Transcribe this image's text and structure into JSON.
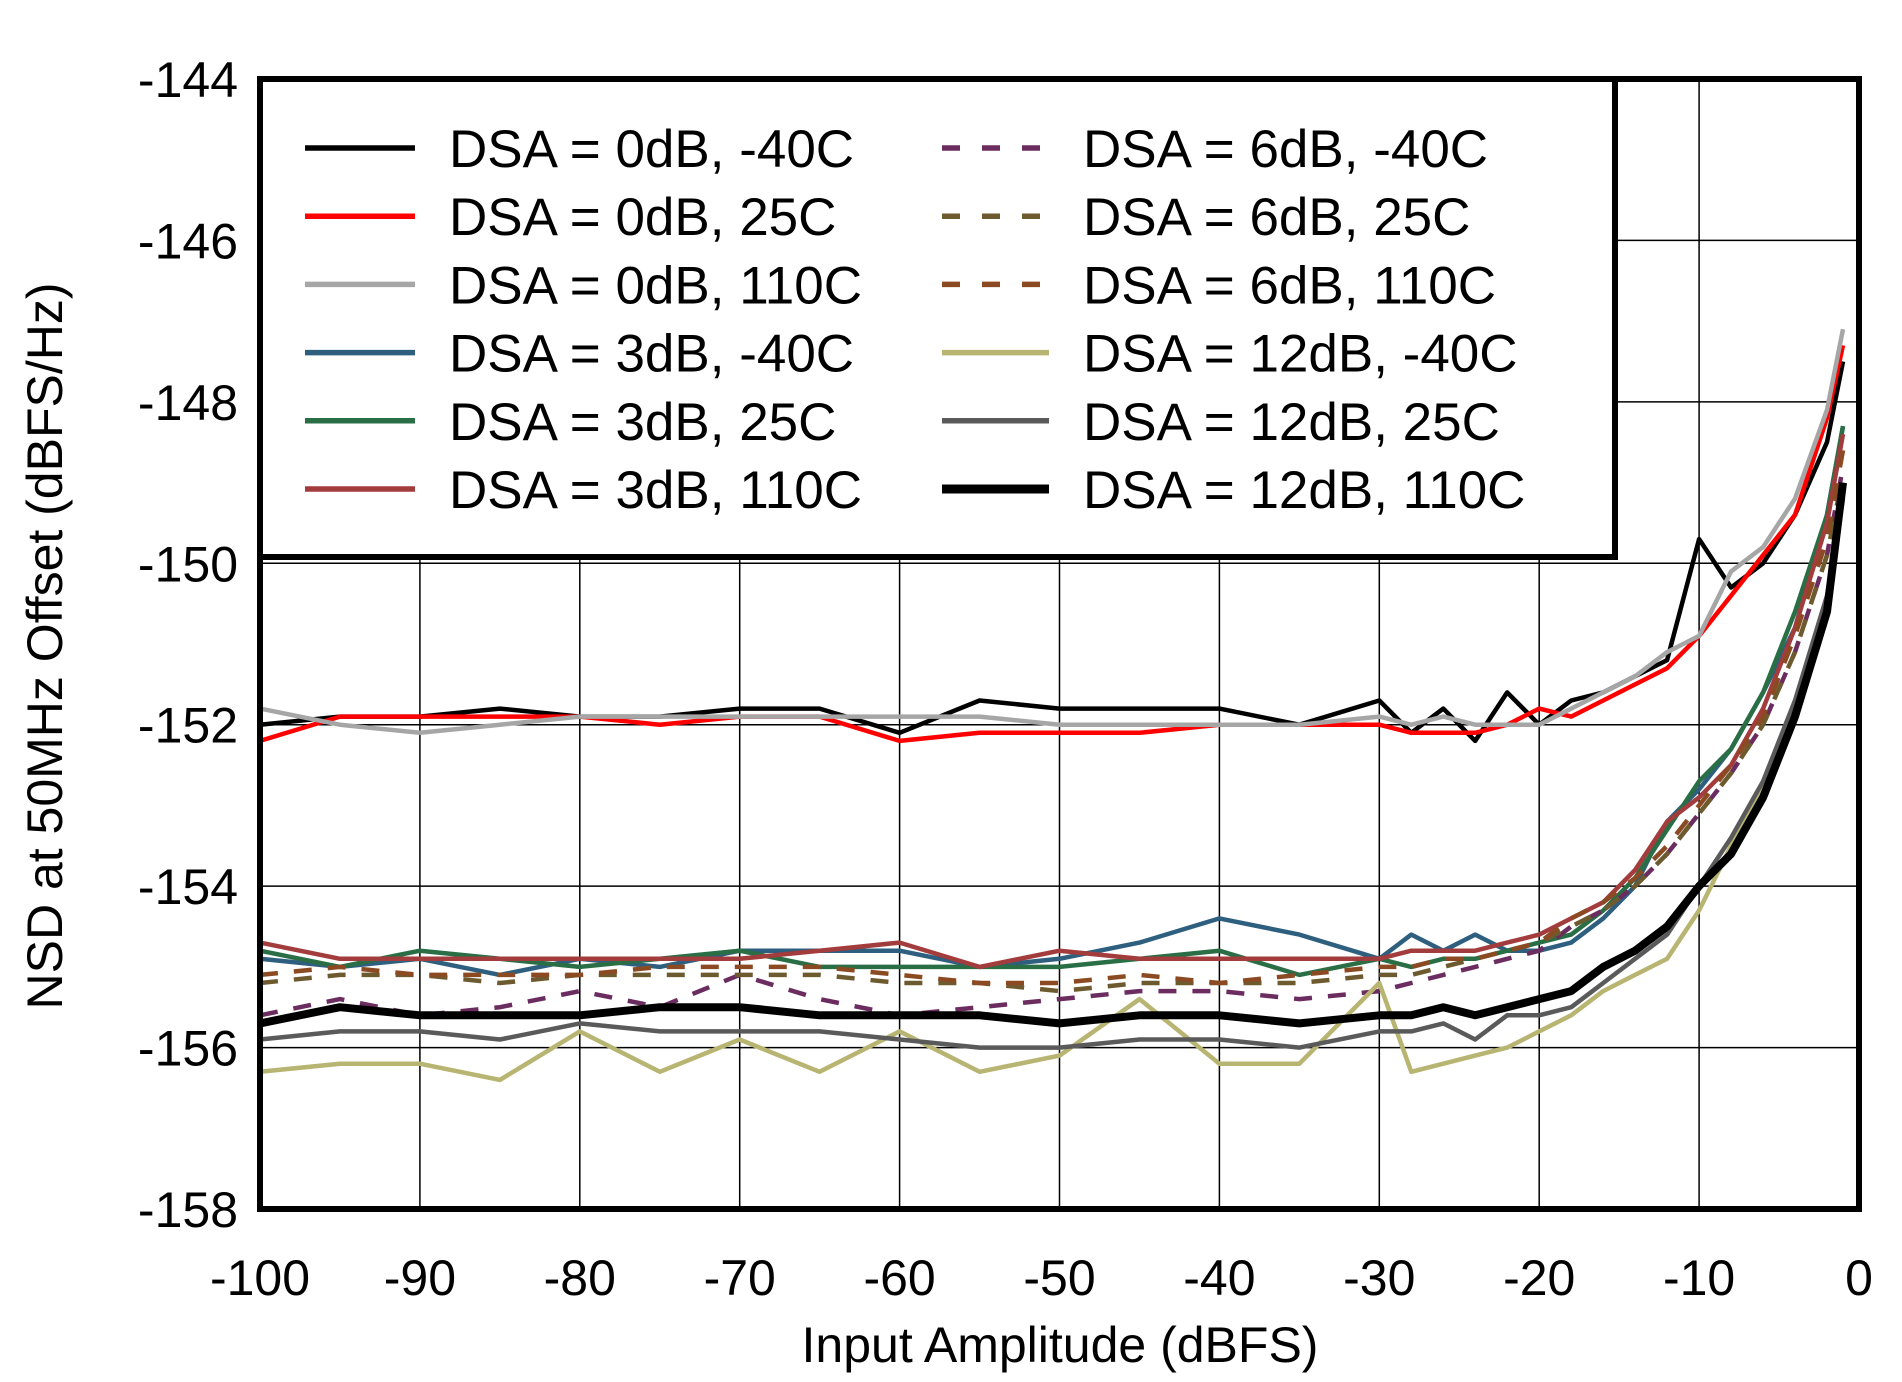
{
  "chart_data": {
    "type": "line",
    "xlabel": "Input Amplitude (dBFS)",
    "ylabel": "NSD at 50MHz Offset (dBFS/Hz)",
    "xlim": [
      -100,
      0
    ],
    "ylim": [
      -158,
      -144
    ],
    "xticks": [
      -100,
      -90,
      -80,
      -70,
      -60,
      -50,
      -40,
      -30,
      -20,
      -10,
      0
    ],
    "yticks": [
      -144,
      -146,
      -148,
      -150,
      -152,
      -154,
      -156,
      -158
    ],
    "grid": true,
    "legend_position": "top-left",
    "x": [
      -100,
      -95,
      -90,
      -85,
      -80,
      -75,
      -70,
      -65,
      -60,
      -55,
      -50,
      -45,
      -40,
      -35,
      -30,
      -28,
      -26,
      -24,
      -22,
      -20,
      -18,
      -16,
      -14,
      -12,
      -10,
      -8,
      -6,
      -4,
      -2,
      -1
    ],
    "series": [
      {
        "name": "DSA = 0dB, -40C",
        "color": "#000000",
        "dash": false,
        "width": "thin",
        "values": [
          -152.0,
          -151.9,
          -151.9,
          -151.8,
          -151.9,
          -151.9,
          -151.8,
          -151.8,
          -152.1,
          -151.7,
          -151.8,
          -151.8,
          -151.8,
          -152.0,
          -151.7,
          -152.1,
          -151.8,
          -152.2,
          -151.6,
          -152.0,
          -151.7,
          -151.6,
          -151.4,
          -151.2,
          -149.7,
          -150.3,
          -150.0,
          -149.4,
          -148.5,
          -147.5
        ]
      },
      {
        "name": "DSA = 0dB, 25C",
        "color": "#ff0000",
        "dash": false,
        "width": "thin",
        "values": [
          -152.2,
          -151.9,
          -151.9,
          -151.9,
          -151.9,
          -152.0,
          -151.9,
          -151.9,
          -152.2,
          -152.1,
          -152.1,
          -152.1,
          -152.0,
          -152.0,
          -152.0,
          -152.1,
          -152.1,
          -152.1,
          -152.0,
          -151.8,
          -151.9,
          -151.7,
          -151.5,
          -151.3,
          -150.9,
          -150.4,
          -149.9,
          -149.4,
          -148.2,
          -147.3
        ]
      },
      {
        "name": "DSA = 0dB, 110C",
        "color": "#a6a6a6",
        "dash": false,
        "width": "thin",
        "values": [
          -151.8,
          -152.0,
          -152.1,
          -152.0,
          -151.9,
          -151.9,
          -151.9,
          -151.9,
          -151.9,
          -151.9,
          -152.0,
          -152.0,
          -152.0,
          -152.0,
          -151.9,
          -152.0,
          -151.9,
          -152.0,
          -152.0,
          -152.0,
          -151.8,
          -151.6,
          -151.4,
          -151.1,
          -150.9,
          -150.1,
          -149.8,
          -149.2,
          -148.1,
          -147.1
        ]
      },
      {
        "name": "DSA = 3dB, -40C",
        "color": "#2e5f7f",
        "dash": false,
        "width": "thin",
        "values": [
          -154.9,
          -155.0,
          -154.9,
          -155.1,
          -154.9,
          -155.0,
          -154.8,
          -154.8,
          -154.8,
          -155.0,
          -154.9,
          -154.7,
          -154.4,
          -154.6,
          -154.9,
          -154.6,
          -154.8,
          -154.6,
          -154.8,
          -154.8,
          -154.7,
          -154.4,
          -154.0,
          -153.2,
          -152.8,
          -152.3,
          -151.6,
          -150.8,
          -149.4,
          -148.3
        ]
      },
      {
        "name": "DSA = 3dB, 25C",
        "color": "#2a6e46",
        "dash": false,
        "width": "thin",
        "values": [
          -154.8,
          -155.0,
          -154.8,
          -154.9,
          -155.0,
          -154.9,
          -154.8,
          -155.0,
          -155.0,
          -155.0,
          -155.0,
          -154.9,
          -154.8,
          -155.1,
          -154.9,
          -155.0,
          -154.9,
          -154.9,
          -154.8,
          -154.7,
          -154.6,
          -154.3,
          -153.9,
          -153.3,
          -152.7,
          -152.3,
          -151.6,
          -150.6,
          -149.4,
          -148.3
        ]
      },
      {
        "name": "DSA = 3dB, 110C",
        "color": "#a33c3c",
        "dash": false,
        "width": "thin",
        "values": [
          -154.7,
          -154.9,
          -154.9,
          -154.9,
          -154.9,
          -154.9,
          -154.9,
          -154.8,
          -154.7,
          -155.0,
          -154.8,
          -154.9,
          -154.9,
          -154.9,
          -154.9,
          -154.8,
          -154.8,
          -154.8,
          -154.7,
          -154.6,
          -154.4,
          -154.2,
          -153.8,
          -153.2,
          -152.9,
          -152.5,
          -151.8,
          -150.8,
          -149.5,
          -148.4
        ]
      },
      {
        "name": "DSA = 6dB, -40C",
        "color": "#6b2c5f",
        "dash": true,
        "width": "thin",
        "values": [
          -155.6,
          -155.4,
          -155.6,
          -155.5,
          -155.3,
          -155.5,
          -155.1,
          -155.4,
          -155.6,
          -155.5,
          -155.4,
          -155.3,
          -155.3,
          -155.4,
          -155.3,
          -155.2,
          -155.1,
          -155.0,
          -154.9,
          -154.8,
          -154.5,
          -154.3,
          -154.0,
          -153.6,
          -153.1,
          -152.6,
          -152.0,
          -151.1,
          -149.9,
          -148.8
        ]
      },
      {
        "name": "DSA = 6dB, 25C",
        "color": "#6e5a2f",
        "dash": true,
        "width": "thin",
        "values": [
          -155.2,
          -155.1,
          -155.1,
          -155.2,
          -155.1,
          -155.1,
          -155.1,
          -155.1,
          -155.2,
          -155.2,
          -155.3,
          -155.2,
          -155.2,
          -155.2,
          -155.1,
          -155.1,
          -155.0,
          -154.9,
          -154.8,
          -154.7,
          -154.5,
          -154.3,
          -154.0,
          -153.6,
          -153.1,
          -152.6,
          -152.0,
          -151.1,
          -149.9,
          -148.9
        ]
      },
      {
        "name": "DSA = 6dB, 110C",
        "color": "#8b4a22",
        "dash": true,
        "width": "thin",
        "values": [
          -155.1,
          -155.0,
          -155.1,
          -155.1,
          -155.1,
          -155.0,
          -155.0,
          -155.0,
          -155.1,
          -155.2,
          -155.2,
          -155.1,
          -155.2,
          -155.1,
          -155.0,
          -155.0,
          -154.9,
          -154.9,
          -154.8,
          -154.7,
          -154.4,
          -154.2,
          -153.9,
          -153.5,
          -153.0,
          -152.5,
          -151.9,
          -150.9,
          -149.7,
          -148.6
        ]
      },
      {
        "name": "DSA = 12dB, -40C",
        "color": "#b8b471",
        "dash": false,
        "width": "thin",
        "values": [
          -156.3,
          -156.2,
          -156.2,
          -156.4,
          -155.8,
          -156.3,
          -155.9,
          -156.3,
          -155.8,
          -156.3,
          -156.1,
          -155.4,
          -156.2,
          -156.2,
          -155.2,
          -156.3,
          -156.2,
          -156.1,
          -156.0,
          -155.8,
          -155.6,
          -155.3,
          -155.1,
          -154.9,
          -154.3,
          -153.5,
          -152.8,
          -151.8,
          -150.5,
          -149.1
        ]
      },
      {
        "name": "DSA = 12dB, 25C",
        "color": "#5a5a5a",
        "dash": false,
        "width": "thin",
        "values": [
          -155.9,
          -155.8,
          -155.8,
          -155.9,
          -155.7,
          -155.8,
          -155.8,
          -155.8,
          -155.9,
          -156.0,
          -156.0,
          -155.9,
          -155.9,
          -156.0,
          -155.8,
          -155.8,
          -155.7,
          -155.9,
          -155.6,
          -155.6,
          -155.5,
          -155.2,
          -154.9,
          -154.6,
          -154.0,
          -153.4,
          -152.7,
          -151.7,
          -150.4,
          -149.2
        ]
      },
      {
        "name": "DSA = 12dB, 110C",
        "color": "#000000",
        "dash": false,
        "width": "thick",
        "values": [
          -155.7,
          -155.5,
          -155.6,
          -155.6,
          -155.6,
          -155.5,
          -155.5,
          -155.6,
          -155.6,
          -155.6,
          -155.7,
          -155.6,
          -155.6,
          -155.7,
          -155.6,
          -155.6,
          -155.5,
          -155.6,
          -155.5,
          -155.4,
          -155.3,
          -155.0,
          -154.8,
          -154.5,
          -154.0,
          -153.6,
          -152.9,
          -151.9,
          -150.6,
          -149.0
        ]
      }
    ]
  }
}
